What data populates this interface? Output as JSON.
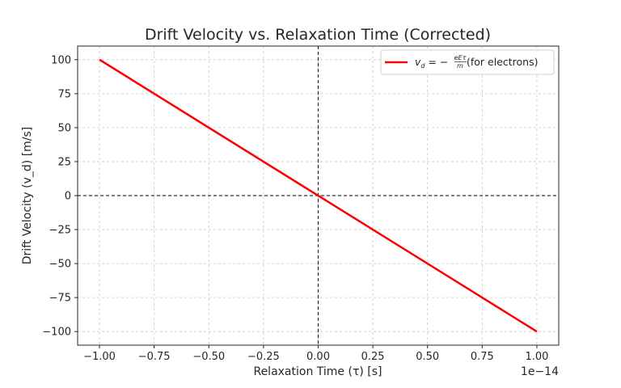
{
  "chart_data": {
    "type": "line",
    "title": "Drift Velocity vs. Relaxation Time (Corrected)",
    "xlabel": "Relaxation Time (τ) [s]",
    "ylabel": "Drift Velocity (v_d) [m/s]",
    "x_offset_label": "1e−14",
    "xlim": [
      -1.1,
      1.1
    ],
    "ylim": [
      -110,
      110
    ],
    "xticks": [
      -1.0,
      -0.75,
      -0.5,
      -0.25,
      0.0,
      0.25,
      0.5,
      0.75,
      1.0
    ],
    "xtick_labels": [
      "−1.00",
      "−0.75",
      "−0.50",
      "−0.25",
      "0.00",
      "0.25",
      "0.50",
      "0.75",
      "1.00"
    ],
    "yticks": [
      -100,
      -75,
      -50,
      -25,
      0,
      25,
      50,
      75,
      100
    ],
    "ytick_labels": [
      "−100",
      "−75",
      "−50",
      "−25",
      "0",
      "25",
      "50",
      "75",
      "100"
    ],
    "grid": true,
    "legend_position": "top-right",
    "series": [
      {
        "name": "v_d = −eEτ/m (for electrons)",
        "color": "#ff0000",
        "x": [
          -1.0,
          1.0
        ],
        "y": [
          100,
          -100
        ]
      }
    ],
    "reference_lines": {
      "horizontal_y": 0,
      "vertical_x": 0,
      "color": "#000000",
      "style": "dashed"
    },
    "legend": {
      "prefix": "v",
      "sub": "d",
      "eq": " = −",
      "num": "eEτ",
      "den": "m",
      "suffix": " (for electrons)"
    }
  }
}
